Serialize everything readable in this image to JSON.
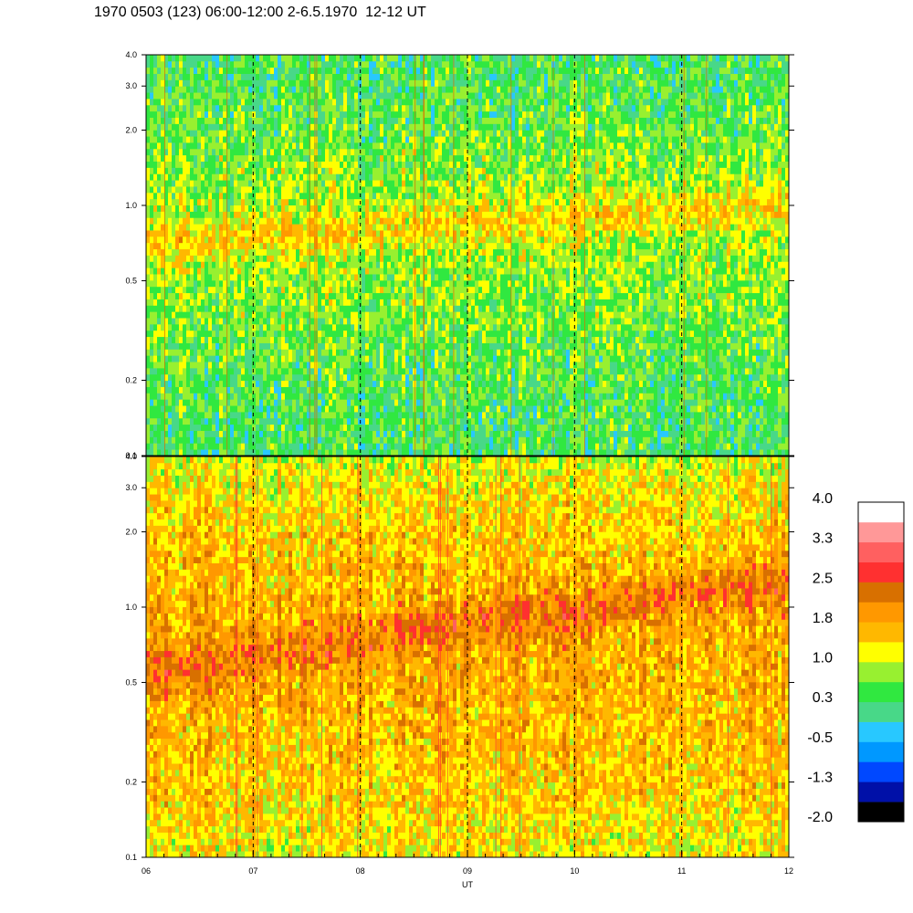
{
  "title": "1970 0503 (123) 06:00-12:00 2-6.5.1970  12-12 UT",
  "chart_data": [
    {
      "type": "heatmap",
      "panel": "upper",
      "x": {
        "label": "",
        "ticks": [
          "06",
          "07",
          "08",
          "09",
          "10",
          "11",
          "12"
        ],
        "range_hours": [
          6,
          12
        ]
      },
      "y": {
        "scale": "log",
        "ticks": [
          "0.1",
          "0.2",
          "0.5",
          "1.0",
          "2.0",
          "3.0",
          "4.0"
        ],
        "tick_values": [
          0.1,
          0.2,
          0.5,
          1.0,
          2.0,
          3.0,
          4.0
        ],
        "range": [
          0.1,
          4.0
        ]
      },
      "grid": "dashed vertical lines at each hour",
      "profile": [
        {
          "y": 0.1,
          "level": 0.35
        },
        {
          "y": 0.2,
          "level": 0.45
        },
        {
          "y": 0.35,
          "level": 0.65
        },
        {
          "y": 0.5,
          "level": 0.75
        },
        {
          "y": 0.8,
          "level": 0.78
        },
        {
          "y": 1.0,
          "level": 0.8
        },
        {
          "y": 1.5,
          "level": 0.7
        },
        {
          "y": 2.0,
          "level": 0.55
        },
        {
          "y": 3.0,
          "level": 0.42
        },
        {
          "y": 4.0,
          "level": 0.38
        }
      ],
      "ridge": {
        "start": [
          6,
          0.7
        ],
        "end": [
          12,
          1.0
        ],
        "level": 1.5
      }
    },
    {
      "type": "heatmap",
      "panel": "lower",
      "x": {
        "label": "UT",
        "ticks": [
          "06",
          "07",
          "08",
          "09",
          "10",
          "11",
          "12"
        ],
        "range_hours": [
          6,
          12
        ]
      },
      "y": {
        "scale": "log",
        "ticks": [
          "0.1",
          "0.2",
          "0.5",
          "1.0",
          "2.0",
          "3.0",
          "4.0"
        ],
        "tick_values": [
          0.1,
          0.2,
          0.5,
          1.0,
          2.0,
          3.0,
          4.0
        ],
        "range": [
          0.1,
          4.0
        ]
      },
      "grid": "dashed vertical lines at each hour",
      "profile": [
        {
          "y": 0.1,
          "level": 1.2
        },
        {
          "y": 0.2,
          "level": 1.5
        },
        {
          "y": 0.5,
          "level": 1.7
        },
        {
          "y": 1.0,
          "level": 1.7
        },
        {
          "y": 2.0,
          "level": 1.5
        },
        {
          "y": 3.0,
          "level": 1.3
        },
        {
          "y": 4.0,
          "level": 1.0
        }
      ],
      "ridge": {
        "start": [
          6,
          0.55
        ],
        "end": [
          12,
          1.3
        ],
        "level": 2.3
      }
    }
  ],
  "colorbar": {
    "labels": [
      "4.0",
      "3.3",
      "2.5",
      "1.8",
      "1.0",
      "0.3",
      "-0.5",
      "-1.3",
      "-2.0"
    ],
    "range": [
      -2.0,
      4.0
    ],
    "colors": [
      "#000000",
      "#0010a8",
      "#0048ff",
      "#0098ff",
      "#28c8ff",
      "#48d888",
      "#30e840",
      "#98f030",
      "#ffff00",
      "#ffb800",
      "#ff9800",
      "#d87000",
      "#ff3030",
      "#ff6060",
      "#ff9898",
      "#ffffff"
    ]
  }
}
